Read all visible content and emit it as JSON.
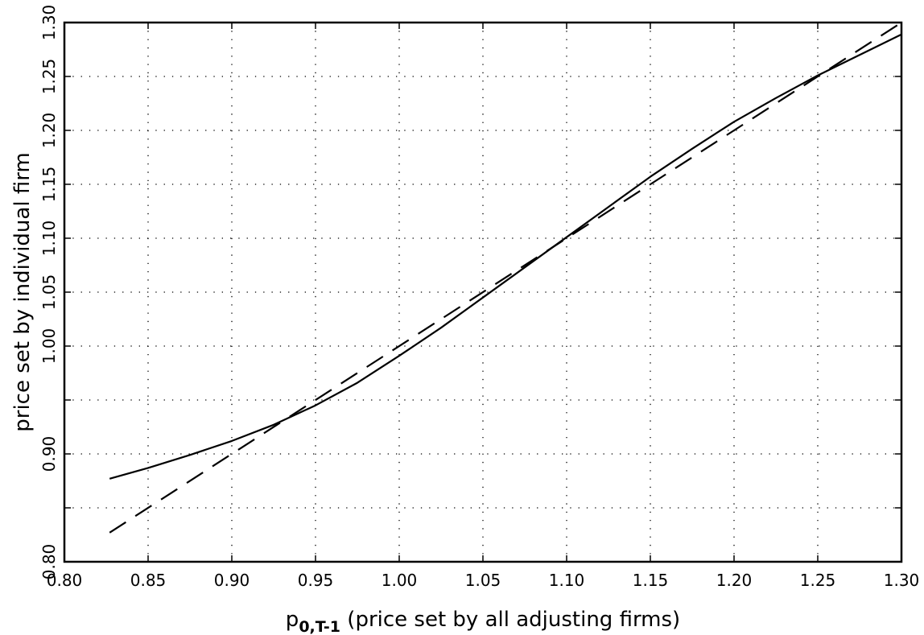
{
  "chart_data": {
    "type": "line",
    "title": "",
    "xlabel": {
      "main": "p",
      "subscript": "0,T-1",
      "rest": " (price set by all adjusting firms)"
    },
    "ylabel": "price set by individual firm",
    "xlim": [
      0.8,
      1.3
    ],
    "ylim": [
      0.8,
      1.3
    ],
    "xticks": [
      "0.80",
      "0.85",
      "0.90",
      "0.95",
      "1.00",
      "1.05",
      "1.10",
      "1.15",
      "1.20",
      "1.25",
      "1.30"
    ],
    "yticks": [
      "0.80",
      "",
      "0.90",
      "",
      "1.00",
      "1.05",
      "1.10",
      "1.15",
      "1.20",
      "1.25",
      "1.30"
    ],
    "ytick_values": [
      0.8,
      0.85,
      0.9,
      0.95,
      1.0,
      1.05,
      1.1,
      1.15,
      1.2,
      1.25,
      1.3
    ],
    "grid": true,
    "legend": "none",
    "series": [
      {
        "style": "solid",
        "x": [
          0.827,
          0.85,
          0.875,
          0.9,
          0.925,
          0.95,
          0.975,
          1.0,
          1.025,
          1.05,
          1.075,
          1.1,
          1.125,
          1.15,
          1.175,
          1.2,
          1.225,
          1.25,
          1.275,
          1.3
        ],
        "y": [
          0.877,
          0.887,
          0.899,
          0.912,
          0.927,
          0.945,
          0.966,
          0.991,
          1.017,
          1.045,
          1.073,
          1.101,
          1.129,
          1.157,
          1.183,
          1.208,
          1.23,
          1.251,
          1.27,
          1.289
        ]
      },
      {
        "style": "dashed",
        "x": [
          0.827,
          1.3
        ],
        "y": [
          0.827,
          1.3
        ]
      }
    ]
  }
}
